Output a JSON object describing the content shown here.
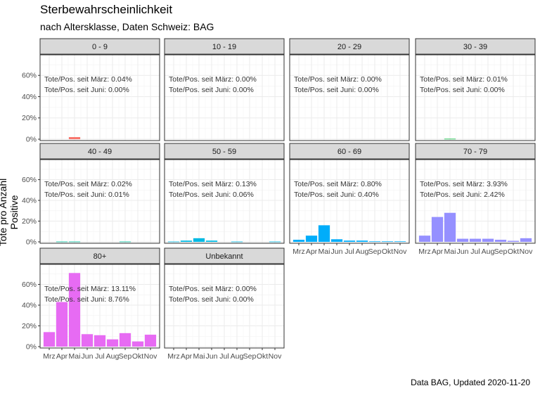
{
  "chart_data": {
    "type": "bar",
    "title": "Sterbewahrscheinlichkeit",
    "subtitle": "nach Altersklasse, Daten Schweiz: BAG",
    "caption": "Data BAG, Updated 2020-11-20",
    "ylabel": "Tote pro Anzahl Positive",
    "xlabel": "",
    "categories": [
      "Mrz",
      "Apr",
      "Mai",
      "Jun",
      "Jul",
      "Aug",
      "Sep",
      "Okt",
      "Nov"
    ],
    "ylim": [
      0,
      0.78
    ],
    "yticks": [
      "0%",
      "20%",
      "40%",
      "60%"
    ],
    "yticks_values": [
      0,
      0.2,
      0.4,
      0.6
    ],
    "facet_layout": "4 columns, 3 rows, free x-axis labels on bottom panels",
    "panels": [
      {
        "label": "0 - 9",
        "color": "#F8766D",
        "values": [
          0,
          0,
          0.02,
          0,
          0,
          0,
          0,
          0,
          0
        ],
        "annotation": [
          "Tote/Pos. seit März: 0.04%",
          "Tote/Pos. seit Juni: 0.00%"
        ]
      },
      {
        "label": "10 - 19",
        "color": "#D39200",
        "values": [
          0,
          0,
          0,
          0,
          0,
          0,
          0,
          0,
          0
        ],
        "annotation": [
          "Tote/Pos. seit März: 0.00%",
          "Tote/Pos. seit Juni: 0.00%"
        ]
      },
      {
        "label": "20 - 29",
        "color": "#93AA00",
        "values": [
          0,
          0,
          0,
          0,
          0,
          0,
          0,
          0,
          0
        ],
        "annotation": [
          "Tote/Pos. seit März: 0.00%",
          "Tote/Pos. seit Juni: 0.00%"
        ]
      },
      {
        "label": "30 - 39",
        "color": "#00BA38",
        "values": [
          0,
          0,
          0.004,
          0,
          0,
          0,
          0,
          0,
          0
        ],
        "annotation": [
          "Tote/Pos. seit März: 0.01%",
          "Tote/Pos. seit Juni: 0.00%"
        ]
      },
      {
        "label": "40 - 49",
        "color": "#00C19F",
        "values": [
          0,
          0.003,
          0.003,
          0,
          0,
          0,
          0.003,
          0,
          0
        ],
        "annotation": [
          "Tote/Pos. seit März: 0.02%",
          "Tote/Pos. seit Juni: 0.01%"
        ]
      },
      {
        "label": "50 - 59",
        "color": "#00B9E3",
        "values": [
          0.003,
          0.012,
          0.035,
          0.012,
          0,
          0.003,
          0,
          0,
          0.003
        ],
        "annotation": [
          "Tote/Pos. seit März: 0.13%",
          "Tote/Pos. seit Juni: 0.06%"
        ]
      },
      {
        "label": "60 - 69",
        "color": "#00ADFA",
        "values": [
          0.02,
          0.06,
          0.16,
          0.025,
          0.012,
          0.012,
          0.005,
          0.005,
          0.005
        ],
        "annotation": [
          "Tote/Pos. seit März: 0.80%",
          "Tote/Pos. seit Juni: 0.40%"
        ]
      },
      {
        "label": "70 - 79",
        "color": "#9590FF",
        "values": [
          0.06,
          0.24,
          0.28,
          0.03,
          0.03,
          0.03,
          0.02,
          0.01,
          0.035
        ],
        "annotation": [
          "Tote/Pos. seit März: 3.93%",
          "Tote/Pos. seit Juni: 2.42%"
        ]
      },
      {
        "label": "80+",
        "color": "#E76BF3",
        "values": [
          0.14,
          0.43,
          0.71,
          0.12,
          0.11,
          0.07,
          0.13,
          0.05,
          0.115
        ],
        "annotation": [
          "Tote/Pos. seit März: 13.11%",
          "Tote/Pos. seit Juni: 8.76%"
        ]
      },
      {
        "label": "Unbekannt",
        "color": "#FF62BC",
        "values": [
          0,
          0,
          0,
          0,
          0,
          0,
          0,
          0,
          0
        ],
        "annotation": [
          "Tote/Pos. seit März: 0.00%",
          "Tote/Pos. seit Juni: 0.00%"
        ]
      }
    ]
  }
}
